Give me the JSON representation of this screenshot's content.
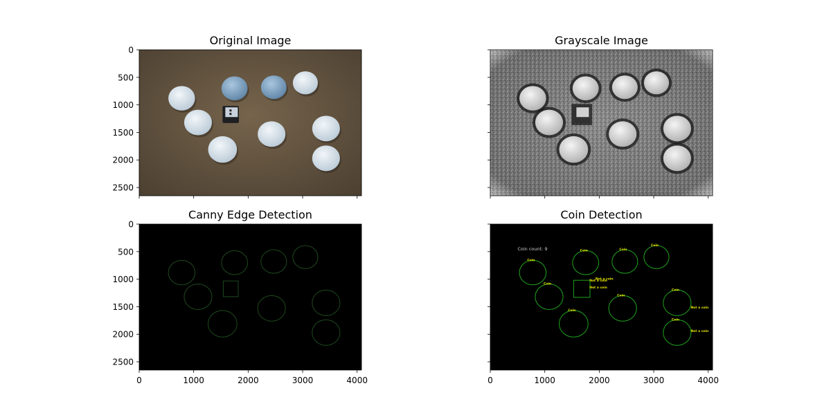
{
  "chart_data": [
    {
      "type": "image",
      "title": "Original Image",
      "xlim": [
        0,
        4080
      ],
      "ylim": [
        2650,
        0
      ],
      "yticks": [
        0,
        500,
        1000,
        1500,
        2000,
        2500
      ],
      "xticks": [
        0,
        1000,
        2000,
        3000,
        4000
      ],
      "show_xtick_labels": false,
      "show_ytick_labels": true,
      "style": "original",
      "colors": {
        "background": "#6b5a45",
        "coin": "#d4e2ec",
        "coin_blue": "#8cb1cf"
      }
    },
    {
      "type": "image",
      "title": "Grayscale Image",
      "xlim": [
        0,
        4080
      ],
      "ylim": [
        2650,
        0
      ],
      "yticks": [
        0,
        500,
        1000,
        1500,
        2000,
        2500
      ],
      "xticks": [
        0,
        1000,
        2000,
        3000,
        4000
      ],
      "show_xtick_labels": false,
      "show_ytick_labels": false,
      "style": "grayscale",
      "colors": {
        "background": "#7a7a7a",
        "coin": "#e6e6e6"
      }
    },
    {
      "type": "image",
      "title": "Canny Edge Detection",
      "xlim": [
        0,
        4080
      ],
      "ylim": [
        2650,
        0
      ],
      "yticks": [
        0,
        500,
        1000,
        1500,
        2000,
        2500
      ],
      "xticks": [
        0,
        1000,
        2000,
        3000,
        4000
      ],
      "show_xtick_labels": true,
      "show_ytick_labels": true,
      "style": "edges",
      "colors": {
        "background": "#000000",
        "edge": "#1e4a1e"
      }
    },
    {
      "type": "image",
      "title": "Coin Detection",
      "xlim": [
        0,
        4080
      ],
      "ylim": [
        2650,
        0
      ],
      "yticks": [
        0,
        500,
        1000,
        1500,
        2000,
        2500
      ],
      "xticks": [
        0,
        1000,
        2000,
        3000,
        4000
      ],
      "show_xtick_labels": true,
      "show_ytick_labels": false,
      "style": "detection",
      "colors": {
        "background": "#000000",
        "circle": "#1fa51f",
        "label": "#e8e800",
        "count": "#cfcfcf"
      },
      "count_label": "Coin count: 9",
      "coin_label": "Coin",
      "not_coin_label": "Not a coin"
    }
  ],
  "coins": [
    {
      "x": 780,
      "y": 880,
      "r": 245
    },
    {
      "x": 1750,
      "y": 700,
      "r": 240
    },
    {
      "x": 2470,
      "y": 680,
      "r": 235
    },
    {
      "x": 3050,
      "y": 600,
      "r": 230
    },
    {
      "x": 1080,
      "y": 1320,
      "r": 255
    },
    {
      "x": 2430,
      "y": 1530,
      "r": 255
    },
    {
      "x": 1530,
      "y": 1810,
      "r": 265
    },
    {
      "x": 3430,
      "y": 1430,
      "r": 255
    },
    {
      "x": 3430,
      "y": 1970,
      "r": 255
    }
  ],
  "blue_coins": [
    1,
    2
  ],
  "usb": {
    "x0": 1530,
    "y0": 1020,
    "x1": 1830,
    "y1": 1330
  },
  "not_coin_markers": [
    {
      "x": 1820,
      "y": 1040
    },
    {
      "x": 1930,
      "y": 1010
    },
    {
      "x": 1820,
      "y": 1170
    },
    {
      "x": 3680,
      "y": 1530
    },
    {
      "x": 3680,
      "y": 1960
    }
  ],
  "count_position": {
    "x": 500,
    "y": 480
  }
}
